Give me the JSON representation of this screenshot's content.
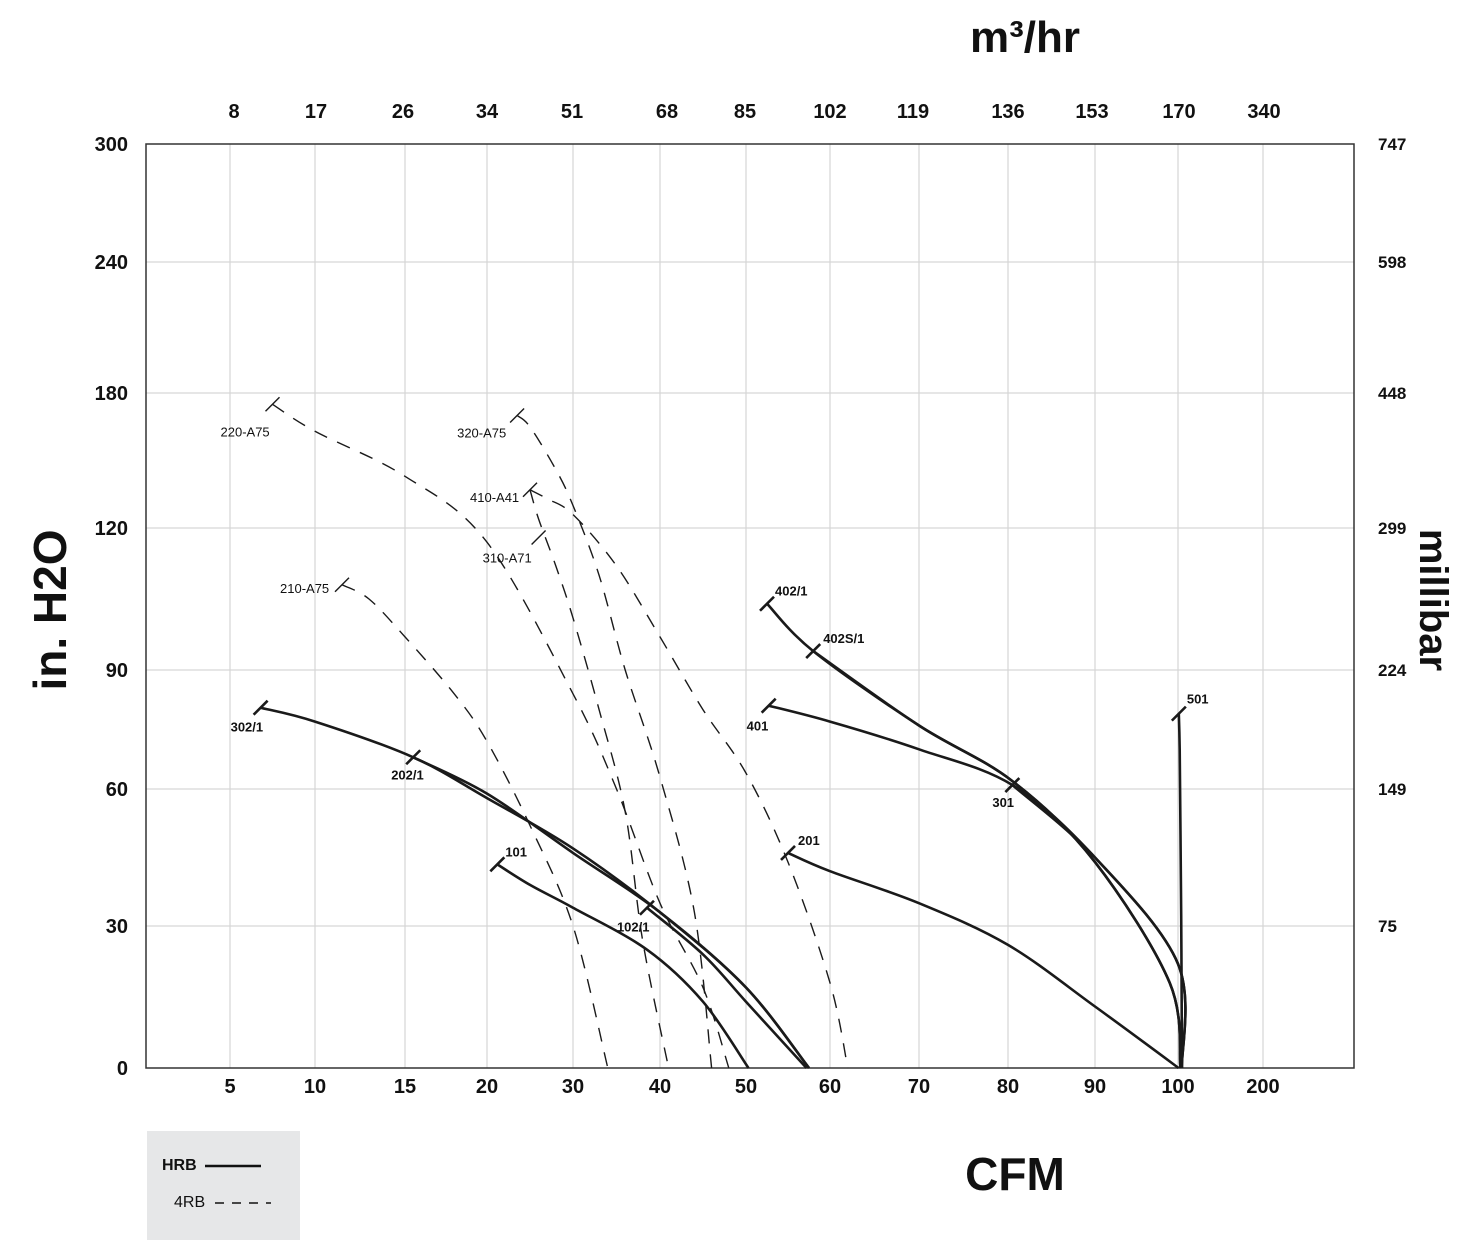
{
  "chart_data": {
    "type": "line",
    "x_axis_bottom": {
      "label": "CFM",
      "ticks": [
        "5",
        "10",
        "15",
        "20",
        "30",
        "40",
        "50",
        "60",
        "70",
        "80",
        "90",
        "100",
        "200"
      ]
    },
    "x_axis_top": {
      "label": "m³/hr",
      "ticks": [
        "8",
        "17",
        "26",
        "34",
        "51",
        "68",
        "85",
        "102",
        "119",
        "136",
        "153",
        "170",
        "340"
      ]
    },
    "y_axis_left": {
      "label": "in. H2O",
      "ticks": [
        "0",
        "30",
        "60",
        "90",
        "120",
        "180",
        "240",
        "300"
      ]
    },
    "y_axis_right": {
      "label": "millibar",
      "ticks": [
        "75",
        "149",
        "224",
        "299",
        "448",
        "598",
        "747"
      ]
    },
    "legend": [
      {
        "name": "HRB",
        "style": "solid"
      },
      {
        "name": "4RB",
        "style": "dashed"
      }
    ],
    "series_note": "x values in CFM (bottom axis tick units), y values in in. H2O",
    "series": [
      {
        "name": "302/1",
        "style": "solid",
        "points": [
          [
            6.8,
            80.5
          ],
          [
            10,
            77
          ],
          [
            15.5,
            68
          ],
          [
            20,
            58
          ],
          [
            30,
            47
          ],
          [
            40,
            33
          ],
          [
            50,
            17
          ],
          [
            57.5,
            0
          ]
        ]
      },
      {
        "name": "202/1",
        "style": "solid",
        "points": [
          [
            15.5,
            68
          ],
          [
            20,
            59
          ],
          [
            30,
            46
          ],
          [
            40,
            33
          ],
          [
            50,
            17
          ],
          [
            57.5,
            0
          ]
        ]
      },
      {
        "name": "101",
        "style": "solid",
        "points": [
          [
            21.2,
            43.5
          ],
          [
            25,
            39
          ],
          [
            30,
            34
          ],
          [
            38.5,
            25
          ],
          [
            45,
            14
          ],
          [
            50.3,
            0
          ]
        ]
      },
      {
        "name": "102/1",
        "style": "solid",
        "points": [
          [
            38.5,
            34
          ],
          [
            45,
            24
          ],
          [
            50,
            14
          ],
          [
            57.2,
            0
          ]
        ]
      },
      {
        "name": "402/1",
        "style": "solid",
        "points": [
          [
            52.5,
            104
          ],
          [
            58,
            94
          ],
          [
            70,
            76
          ],
          [
            80.5,
            62
          ],
          [
            90,
            44
          ],
          [
            99,
            18
          ],
          [
            103,
            0
          ]
        ]
      },
      {
        "name": "402S/1",
        "style": "solid",
        "points": [
          [
            58,
            94
          ],
          [
            70,
            76
          ],
          [
            80.5,
            62
          ],
          [
            90,
            44
          ],
          [
            99,
            18
          ],
          [
            103,
            0
          ]
        ]
      },
      {
        "name": "401",
        "style": "solid",
        "points": [
          [
            52.7,
            81
          ],
          [
            60,
            77
          ],
          [
            70,
            70
          ],
          [
            80.5,
            61
          ],
          [
            90,
            45
          ],
          [
            100,
            22
          ],
          [
            104.5,
            0
          ]
        ]
      },
      {
        "name": "301",
        "style": "solid",
        "points": [
          [
            80.5,
            61
          ],
          [
            90,
            45
          ],
          [
            100,
            22
          ],
          [
            104.5,
            0
          ]
        ]
      },
      {
        "name": "201",
        "style": "solid",
        "points": [
          [
            55,
            46
          ],
          [
            60,
            42
          ],
          [
            70,
            35
          ],
          [
            80,
            26
          ],
          [
            90,
            13
          ],
          [
            100.7,
            0
          ]
        ]
      },
      {
        "name": "501",
        "style": "solid",
        "points": [
          [
            101,
            79
          ],
          [
            102,
            70
          ],
          [
            103,
            50
          ],
          [
            104,
            25
          ],
          [
            104.7,
            0
          ]
        ]
      },
      {
        "name": "220-A75",
        "style": "dashed",
        "points": [
          [
            7.5,
            175
          ],
          [
            10,
            163
          ],
          [
            15,
            143
          ],
          [
            20,
            117
          ],
          [
            30,
            84
          ],
          [
            35,
            60
          ],
          [
            40,
            35
          ],
          [
            45,
            17
          ],
          [
            48,
            0
          ]
        ]
      },
      {
        "name": "210-A75",
        "style": "dashed",
        "points": [
          [
            11.5,
            108
          ],
          [
            13,
            105
          ],
          [
            15,
            97
          ],
          [
            18,
            84
          ],
          [
            20,
            72
          ],
          [
            25,
            52
          ],
          [
            30,
            30
          ],
          [
            34,
            0
          ]
        ]
      },
      {
        "name": "320-A75",
        "style": "dashed",
        "points": [
          [
            23.5,
            170
          ],
          [
            25,
            165
          ],
          [
            28,
            146
          ],
          [
            30,
            130
          ],
          [
            33,
            110
          ],
          [
            36,
            90
          ],
          [
            40,
            63
          ],
          [
            44,
            33
          ],
          [
            46,
            0
          ]
        ]
      },
      {
        "name": "410-A41",
        "style": "dashed",
        "points": [
          [
            25,
            137
          ],
          [
            27,
            133
          ],
          [
            30,
            126
          ],
          [
            35,
            112
          ],
          [
            40,
            97
          ],
          [
            45,
            80
          ],
          [
            50,
            64
          ],
          [
            55,
            44
          ],
          [
            60,
            18
          ],
          [
            62,
            0
          ]
        ]
      },
      {
        "name": "310-A71",
        "style": "dashed",
        "points": [
          [
            25,
            137
          ],
          [
            26,
            124
          ],
          [
            28,
            112
          ],
          [
            30,
            101
          ],
          [
            33,
            80
          ],
          [
            36,
            55
          ],
          [
            38,
            27
          ],
          [
            41,
            0
          ]
        ]
      }
    ]
  }
}
